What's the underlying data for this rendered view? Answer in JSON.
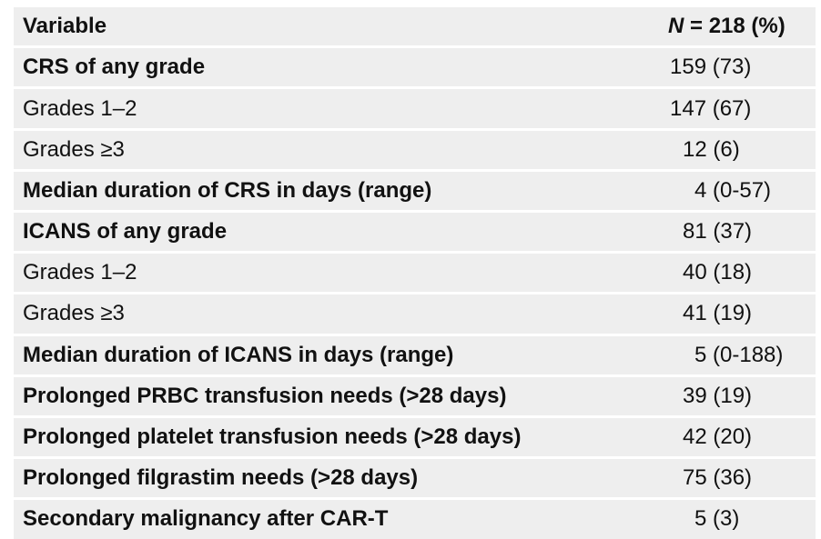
{
  "table": {
    "header": {
      "variable": "Variable",
      "n_symbol": "N",
      "n_rest": " = 218 (%)"
    },
    "rows": [
      {
        "label": "CRS of any grade",
        "value": "159 (73)"
      },
      {
        "label": "Grades 1–2",
        "value": "147 (67)"
      },
      {
        "label": "Grades ≥3",
        "value": "12 (6)"
      },
      {
        "label": "Median duration of CRS in days (range)",
        "value": "4 (0-57)"
      },
      {
        "label": "ICANS of any grade",
        "value": "81 (37)"
      },
      {
        "label": "Grades 1–2",
        "value": "40 (18)"
      },
      {
        "label": "Grades ≥3",
        "value": "41 (19)"
      },
      {
        "label": "Median duration of ICANS in days (range)",
        "value": "5 (0-188)"
      },
      {
        "label": "Prolonged PRBC transfusion needs (>28 days)",
        "value": "39 (19)"
      },
      {
        "label": "Prolonged platelet transfusion needs (>28 days)",
        "value": "42 (20)"
      },
      {
        "label": "Prolonged filgrastim needs (>28 days)",
        "value": "75 (36)"
      },
      {
        "label": "Secondary malignancy after CAR-T",
        "value": "5 (3)"
      }
    ]
  }
}
